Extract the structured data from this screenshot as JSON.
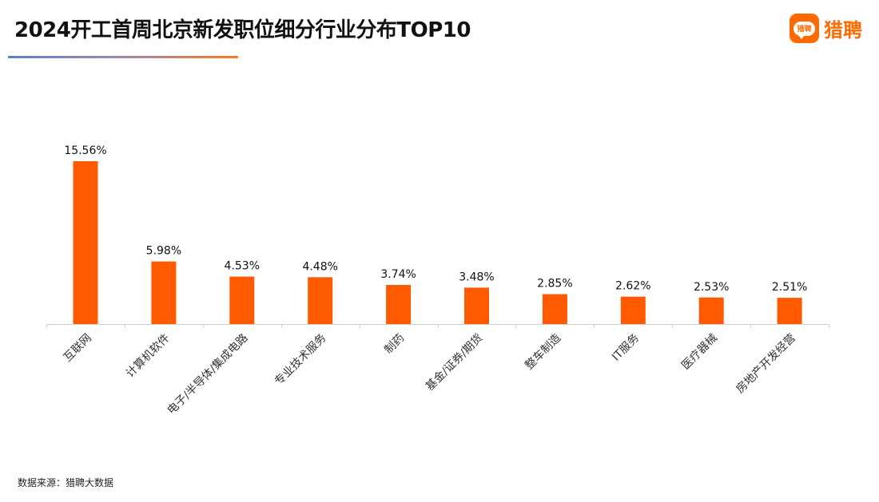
{
  "title": "2024开工首周北京新发职位细分行业分布TOP10",
  "brand": {
    "logo_text": "猎聘",
    "name": "猎聘",
    "color": "#ff6a00"
  },
  "source": "数据来源：猎聘大数据",
  "chart_data": {
    "type": "bar",
    "categories": [
      "互联网",
      "计算机软件",
      "电子/半导体/集成电路",
      "专业技术服务",
      "制药",
      "基金/证券/期货",
      "整车制造",
      "IT服务",
      "医疗器械",
      "房地产开发经营"
    ],
    "values": [
      15.56,
      5.98,
      4.53,
      4.48,
      3.74,
      3.48,
      2.85,
      2.62,
      2.53,
      2.51
    ],
    "data_labels": [
      "15.56%",
      "5.98%",
      "4.53%",
      "4.48%",
      "3.74%",
      "3.48%",
      "2.85%",
      "2.62%",
      "2.53%",
      "2.51%"
    ],
    "ylim": [
      0,
      16
    ],
    "bar_color": "#ff5a00",
    "grid": false,
    "legend": "none"
  }
}
